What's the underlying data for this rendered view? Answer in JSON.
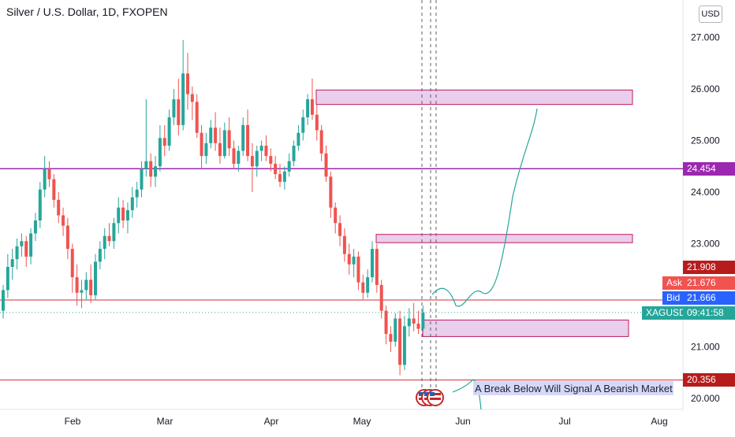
{
  "header": {
    "title": "Silver / U.S. Dollar, 1D, FXOPEN",
    "currency": "USD"
  },
  "price_axis": {
    "ticks": [
      "27.000",
      "26.000",
      "25.000",
      "24.000",
      "23.000",
      "21.000",
      "20.000"
    ]
  },
  "time_axis": {
    "labels": [
      "Feb",
      "Mar",
      "Apr",
      "May",
      "Jun",
      "Jul",
      "Aug"
    ]
  },
  "price_tags": {
    "level_high": "24.454",
    "level_top": "21.908",
    "ask_label": "Ask",
    "ask_value": "21.676",
    "bid_label": "Bid",
    "bid_value": "21.666",
    "symbol_label": "XAGUSD",
    "countdown": "09:41:58",
    "level_low": "20.356"
  },
  "annotation": {
    "text": "A Break Below Will Signal A Bearish Market"
  },
  "colors": {
    "up": "#26a69a",
    "down": "#ef5350",
    "zone_fill": "#e1bee7",
    "zone_border": "#c2185b",
    "purple_line": "#9c27b0",
    "red_line": "#d32f2f",
    "ask": "#f05350",
    "bid": "#2962ff",
    "symbol": "#26a69a",
    "red_tag": "#b71c1c",
    "projection": "#26a69a"
  },
  "chart_data": {
    "type": "candlestick",
    "title": "Silver / U.S. Dollar, 1D, FXOPEN",
    "y_range": [
      19.8,
      27.6
    ],
    "x_labels": [
      "Feb",
      "Mar",
      "Apr",
      "May",
      "Jun",
      "Jul",
      "Aug"
    ],
    "horizontal_levels": [
      24.454,
      21.908,
      20.356
    ],
    "zones": [
      {
        "from": 25.7,
        "to": 25.98
      },
      {
        "from": 23.02,
        "to": 23.18
      },
      {
        "from": 21.2,
        "to": 21.52
      }
    ],
    "last_close": 21.666,
    "candles": [
      [
        21.7,
        22.2,
        21.55,
        22.1
      ],
      [
        22.1,
        22.8,
        21.95,
        22.55
      ],
      [
        22.55,
        22.9,
        22.3,
        22.7
      ],
      [
        22.7,
        23.1,
        22.5,
        22.95
      ],
      [
        22.95,
        23.2,
        22.75,
        23.05
      ],
      [
        23.05,
        23.15,
        22.55,
        22.75
      ],
      [
        22.75,
        23.3,
        22.6,
        23.2
      ],
      [
        23.2,
        23.6,
        23.05,
        23.45
      ],
      [
        23.45,
        24.2,
        23.3,
        24.05
      ],
      [
        24.05,
        24.7,
        23.9,
        24.45
      ],
      [
        24.45,
        24.6,
        24.1,
        24.25
      ],
      [
        24.25,
        24.35,
        23.7,
        23.85
      ],
      [
        23.85,
        24.0,
        23.4,
        23.55
      ],
      [
        23.55,
        23.7,
        23.15,
        23.35
      ],
      [
        23.35,
        23.5,
        22.7,
        22.9
      ],
      [
        22.9,
        23.0,
        22.05,
        22.35
      ],
      [
        22.35,
        22.6,
        21.8,
        22.05
      ],
      [
        22.05,
        22.3,
        21.75,
        22.1
      ],
      [
        22.1,
        22.45,
        21.9,
        22.3
      ],
      [
        22.3,
        22.6,
        21.85,
        22.0
      ],
      [
        22.0,
        22.8,
        21.9,
        22.65
      ],
      [
        22.65,
        23.05,
        22.5,
        22.9
      ],
      [
        22.9,
        23.3,
        22.7,
        23.15
      ],
      [
        23.15,
        23.4,
        22.95,
        23.05
      ],
      [
        23.05,
        23.5,
        22.9,
        23.4
      ],
      [
        23.4,
        23.9,
        23.2,
        23.7
      ],
      [
        23.7,
        23.85,
        23.3,
        23.45
      ],
      [
        23.45,
        23.8,
        23.2,
        23.65
      ],
      [
        23.65,
        24.1,
        23.5,
        23.9
      ],
      [
        23.9,
        24.2,
        23.7,
        24.05
      ],
      [
        24.05,
        24.6,
        23.9,
        24.45
      ],
      [
        24.45,
        25.8,
        24.3,
        24.6
      ],
      [
        24.6,
        24.75,
        24.1,
        24.3
      ],
      [
        24.3,
        24.7,
        24.1,
        24.5
      ],
      [
        24.5,
        25.3,
        24.4,
        25.05
      ],
      [
        25.05,
        25.3,
        24.7,
        24.9
      ],
      [
        24.9,
        25.6,
        24.8,
        25.45
      ],
      [
        25.45,
        26.0,
        25.3,
        25.8
      ],
      [
        25.8,
        26.2,
        25.1,
        25.3
      ],
      [
        25.3,
        26.95,
        25.2,
        26.3
      ],
      [
        26.3,
        26.7,
        25.6,
        25.9
      ],
      [
        25.9,
        26.05,
        25.4,
        25.75
      ],
      [
        25.75,
        25.9,
        25.05,
        25.15
      ],
      [
        25.15,
        25.3,
        24.45,
        24.7
      ],
      [
        24.7,
        25.15,
        24.55,
        24.95
      ],
      [
        24.95,
        25.4,
        24.85,
        25.25
      ],
      [
        25.25,
        25.55,
        24.8,
        24.95
      ],
      [
        24.95,
        25.25,
        24.55,
        24.7
      ],
      [
        24.7,
        25.35,
        24.65,
        25.2
      ],
      [
        25.2,
        25.45,
        24.7,
        24.85
      ],
      [
        24.85,
        25.0,
        24.45,
        24.55
      ],
      [
        24.55,
        24.9,
        24.4,
        24.8
      ],
      [
        24.8,
        25.45,
        24.7,
        25.3
      ],
      [
        25.3,
        25.6,
        24.6,
        24.7
      ],
      [
        24.7,
        24.95,
        24.0,
        24.5
      ],
      [
        24.5,
        24.9,
        24.3,
        24.8
      ],
      [
        24.8,
        25.0,
        24.6,
        24.9
      ],
      [
        24.9,
        25.1,
        24.6,
        24.7
      ],
      [
        24.7,
        24.85,
        24.4,
        24.55
      ],
      [
        24.55,
        24.7,
        24.25,
        24.35
      ],
      [
        24.35,
        24.55,
        24.1,
        24.2
      ],
      [
        24.2,
        24.5,
        24.05,
        24.4
      ],
      [
        24.4,
        24.75,
        24.3,
        24.6
      ],
      [
        24.6,
        25.0,
        24.5,
        24.9
      ],
      [
        24.9,
        25.3,
        24.8,
        25.15
      ],
      [
        25.15,
        25.6,
        25.0,
        25.45
      ],
      [
        25.45,
        25.9,
        25.3,
        25.8
      ],
      [
        25.8,
        26.2,
        25.4,
        25.5
      ],
      [
        25.5,
        25.7,
        25.0,
        25.2
      ],
      [
        25.2,
        25.3,
        24.6,
        24.75
      ],
      [
        24.75,
        24.9,
        24.2,
        24.3
      ],
      [
        24.3,
        24.4,
        23.5,
        23.7
      ],
      [
        23.7,
        23.8,
        23.2,
        23.4
      ],
      [
        23.4,
        23.55,
        22.95,
        23.15
      ],
      [
        23.15,
        23.3,
        22.65,
        22.8
      ],
      [
        22.8,
        23.0,
        22.4,
        22.6
      ],
      [
        22.6,
        22.9,
        22.35,
        22.75
      ],
      [
        22.75,
        22.85,
        22.1,
        22.25
      ],
      [
        22.25,
        22.4,
        21.9,
        22.05
      ],
      [
        22.05,
        22.5,
        21.95,
        22.35
      ],
      [
        22.35,
        23.05,
        22.25,
        22.9
      ],
      [
        22.9,
        23.0,
        22.05,
        22.2
      ],
      [
        22.2,
        22.3,
        21.55,
        21.7
      ],
      [
        21.7,
        21.8,
        21.05,
        21.25
      ],
      [
        21.25,
        21.4,
        20.9,
        21.1
      ],
      [
        21.1,
        21.65,
        21.0,
        21.55
      ],
      [
        21.55,
        21.7,
        20.45,
        20.65
      ],
      [
        20.65,
        21.6,
        20.55,
        21.4
      ],
      [
        21.4,
        21.75,
        21.2,
        21.55
      ],
      [
        21.55,
        21.85,
        21.3,
        21.45
      ],
      [
        21.45,
        21.7,
        21.25,
        21.35
      ],
      [
        21.35,
        21.8,
        21.3,
        21.67
      ]
    ]
  }
}
